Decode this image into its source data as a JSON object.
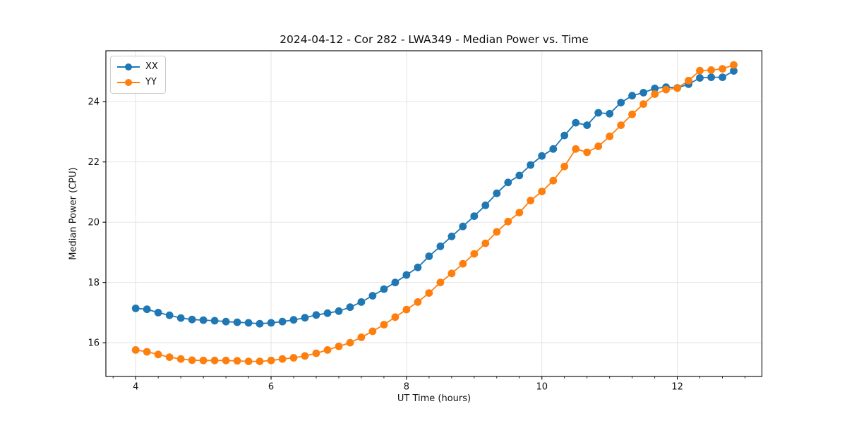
{
  "figure": {
    "title": "2024-04-12 - Cor 282 - LWA349 - Median Power vs. Time"
  },
  "chart_data": {
    "type": "line",
    "title": "2024-04-12 - Cor 282 - LWA349 - Median Power vs. Time",
    "xlabel": "UT Time (hours)",
    "ylabel": "Median Power (CPU)",
    "xlim": [
      3.56,
      13.25
    ],
    "ylim": [
      14.88,
      25.69
    ],
    "x_ticks": [
      4,
      6,
      8,
      10,
      12
    ],
    "x_minor_tick_step": 0.33333,
    "y_ticks": [
      16,
      18,
      20,
      22,
      24
    ],
    "grid": true,
    "grid_color": "#e0e0e0",
    "spine_color": "#000000",
    "legend_position": "upper-left",
    "marker": "circle",
    "marker_radius": 5.4,
    "line_width": 1.8,
    "x": [
      4.0,
      4.167,
      4.333,
      4.5,
      4.667,
      4.833,
      5.0,
      5.167,
      5.333,
      5.5,
      5.667,
      5.833,
      6.0,
      6.167,
      6.333,
      6.5,
      6.667,
      6.833,
      7.0,
      7.167,
      7.333,
      7.5,
      7.667,
      7.833,
      8.0,
      8.167,
      8.333,
      8.5,
      8.667,
      8.833,
      9.0,
      9.167,
      9.333,
      9.5,
      9.667,
      9.833,
      10.0,
      10.167,
      10.333,
      10.5,
      10.667,
      10.833,
      11.0,
      11.167,
      11.333,
      11.5,
      11.667,
      11.833,
      12.0,
      12.167,
      12.333,
      12.5,
      12.667,
      12.833
    ],
    "series": [
      {
        "name": "XX",
        "color": "#1f77b4",
        "values": [
          17.14,
          17.11,
          17.0,
          16.91,
          16.82,
          16.77,
          16.75,
          16.73,
          16.7,
          16.68,
          16.66,
          16.63,
          16.66,
          16.7,
          16.76,
          16.83,
          16.92,
          16.98,
          17.05,
          17.18,
          17.35,
          17.56,
          17.78,
          18.0,
          18.25,
          18.5,
          18.87,
          19.2,
          19.53,
          19.86,
          20.2,
          20.56,
          20.96,
          21.32,
          21.55,
          21.9,
          22.2,
          22.43,
          22.88,
          23.3,
          23.22,
          23.63,
          23.6,
          23.97,
          24.2,
          24.3,
          24.44,
          24.48,
          24.46,
          24.58,
          24.79,
          24.81,
          24.81,
          25.02
        ]
      },
      {
        "name": "YY",
        "color": "#ff7f0e",
        "values": [
          15.76,
          15.7,
          15.61,
          15.52,
          15.46,
          15.42,
          15.41,
          15.41,
          15.41,
          15.4,
          15.38,
          15.38,
          15.41,
          15.46,
          15.5,
          15.56,
          15.65,
          15.76,
          15.88,
          16.0,
          16.18,
          16.38,
          16.6,
          16.85,
          17.1,
          17.35,
          17.65,
          18.0,
          18.3,
          18.62,
          18.95,
          19.3,
          19.68,
          20.02,
          20.32,
          20.72,
          21.02,
          21.38,
          21.85,
          22.43,
          22.32,
          22.52,
          22.85,
          23.22,
          23.58,
          23.92,
          24.25,
          24.4,
          24.45,
          24.7,
          25.03,
          25.05,
          25.09,
          25.22
        ]
      }
    ]
  }
}
